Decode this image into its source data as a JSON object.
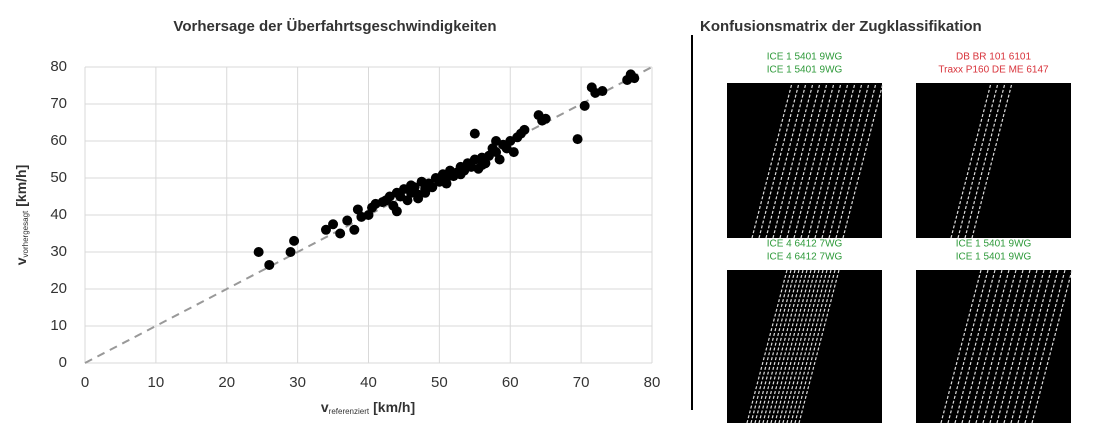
{
  "chart_data": {
    "type": "scatter",
    "title": "Vorhersage der Überfahrtsgeschwindigkeiten",
    "x_label": {
      "symbol": "v",
      "subscript": "referenziert",
      "unit": "[km/h]"
    },
    "y_label": {
      "symbol": "v",
      "subscript": "vorhergesagt",
      "unit": "[km/h]"
    },
    "x": [
      24.5,
      26,
      29,
      29.5,
      34,
      35,
      36,
      37,
      38,
      38.5,
      40,
      40.5,
      41,
      42,
      42.5,
      43,
      43.5,
      44,
      44.5,
      45,
      45.5,
      46,
      46.5,
      47,
      47.5,
      48,
      48.5,
      49,
      49.5,
      50,
      50.5,
      51,
      51.5,
      52,
      52.5,
      53,
      53.5,
      54,
      54.5,
      55,
      55,
      55.5,
      56,
      56.5,
      57,
      57.5,
      58,
      58.5,
      59,
      59.5,
      60,
      60.5,
      61,
      61.5,
      62,
      64,
      64.5,
      65,
      69.5,
      70.5,
      71.5,
      72,
      73,
      76.5,
      77,
      77.5,
      44,
      46,
      48,
      51,
      53,
      56,
      58,
      39,
      47
    ],
    "values": [
      30,
      26.5,
      30,
      33,
      36,
      37.5,
      35,
      38.5,
      36,
      41.5,
      40,
      42,
      43,
      43.5,
      44,
      45,
      42.5,
      46,
      45,
      47,
      44,
      46,
      47.5,
      45.5,
      49,
      47,
      48.5,
      47.5,
      50,
      49,
      51,
      50,
      52,
      50.5,
      51.5,
      53,
      52,
      54,
      53,
      55,
      62,
      52.5,
      55.5,
      54,
      56,
      58,
      57,
      55,
      59,
      58,
      60,
      57,
      61,
      62,
      63,
      67,
      65.5,
      66,
      60.5,
      69.5,
      74.5,
      73,
      73.5,
      76.5,
      78,
      77,
      41,
      48,
      46,
      48.5,
      51,
      53.5,
      60,
      39.5,
      44.5
    ],
    "color": "#000000",
    "xlim": [
      0,
      80
    ],
    "ylim": [
      0,
      80
    ],
    "xticks": [
      0,
      10,
      20,
      30,
      40,
      50,
      60,
      70,
      80
    ],
    "yticks": [
      0,
      10,
      20,
      30,
      40,
      50,
      60,
      70,
      80
    ],
    "grid": true
  },
  "panel": {
    "title": "Konfusionsmatrix der Zugklassifikation",
    "tiles": [
      {
        "true_label": "ICE 1 5401 9WG",
        "predicted_label": "ICE 1 5401 9WG",
        "correct": true
      },
      {
        "true_label": "DB BR 101 6101",
        "predicted_label": "Traxx P160 DE ME 6147",
        "correct": false
      },
      {
        "true_label": "ICE 4 6412 7WG",
        "predicted_label": "ICE 4 6412 7WG",
        "correct": true
      },
      {
        "true_label": "ICE 1 5401 9WG",
        "predicted_label": "ICE 1 5401 9WG",
        "correct": true
      }
    ]
  }
}
